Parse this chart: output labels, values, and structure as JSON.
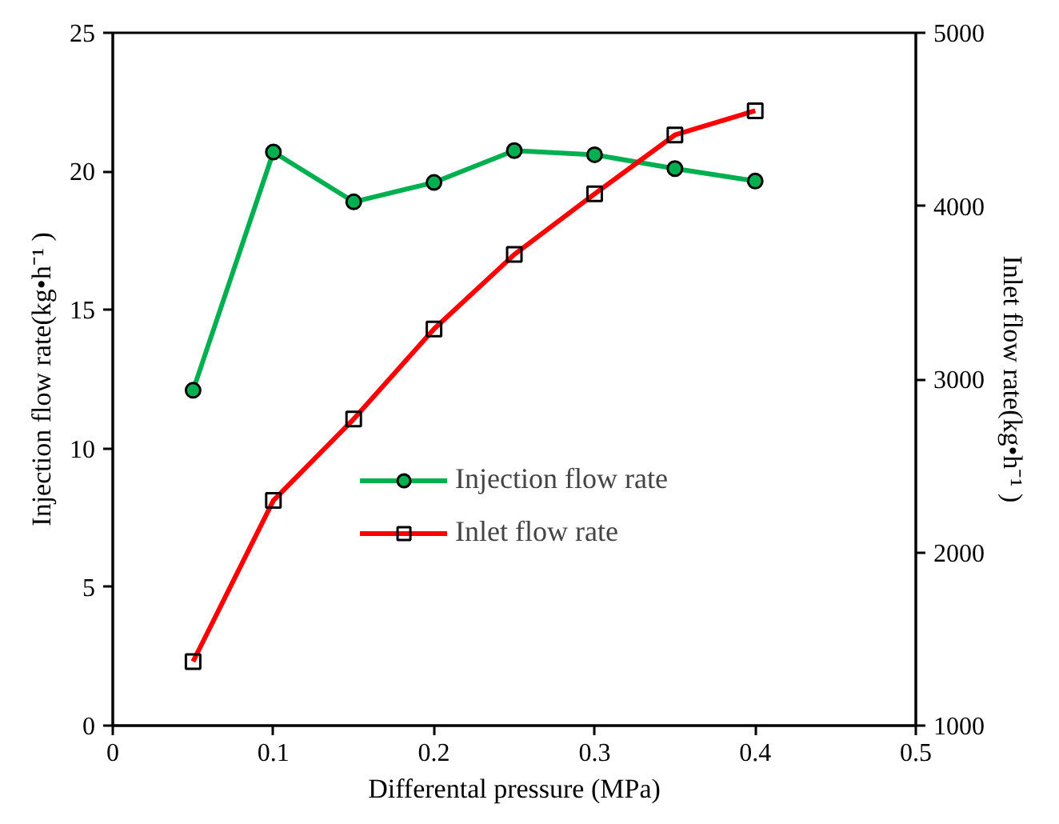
{
  "chart_data": {
    "type": "line",
    "xlabel": "Differental pressure (MPa)",
    "ylabel": "Injection flow rate(kg•h⁻¹ )",
    "y2label": "Inlet flow rate(kg•h⁻¹ )",
    "x": [
      0.05,
      0.1,
      0.15,
      0.2,
      0.25,
      0.3,
      0.35,
      0.4
    ],
    "series": [
      {
        "name": "Injection flow rate",
        "color": "#00b050",
        "marker": "circle",
        "values": [
          12.1,
          20.7,
          18.9,
          19.6,
          20.75,
          20.6,
          20.1,
          19.65
        ]
      },
      {
        "name": "Inlet flow rate",
        "color": "#ff0000",
        "marker": "square",
        "axis": "y2",
        "values": [
          1370,
          2300,
          2770,
          3290,
          3720,
          4070,
          4410,
          4550
        ]
      }
    ],
    "xlim": [
      0,
      0.5
    ],
    "xticks": [
      0,
      0.1,
      0.2,
      0.3,
      0.4,
      0.5
    ],
    "ylim": [
      0,
      25
    ],
    "yticks": [
      0,
      5,
      10,
      15,
      20,
      25
    ],
    "y2lim": [
      1000,
      5000
    ],
    "y2ticks": [
      1000,
      2000,
      3000,
      4000,
      5000
    ],
    "grid": false,
    "legend": "bottom"
  }
}
